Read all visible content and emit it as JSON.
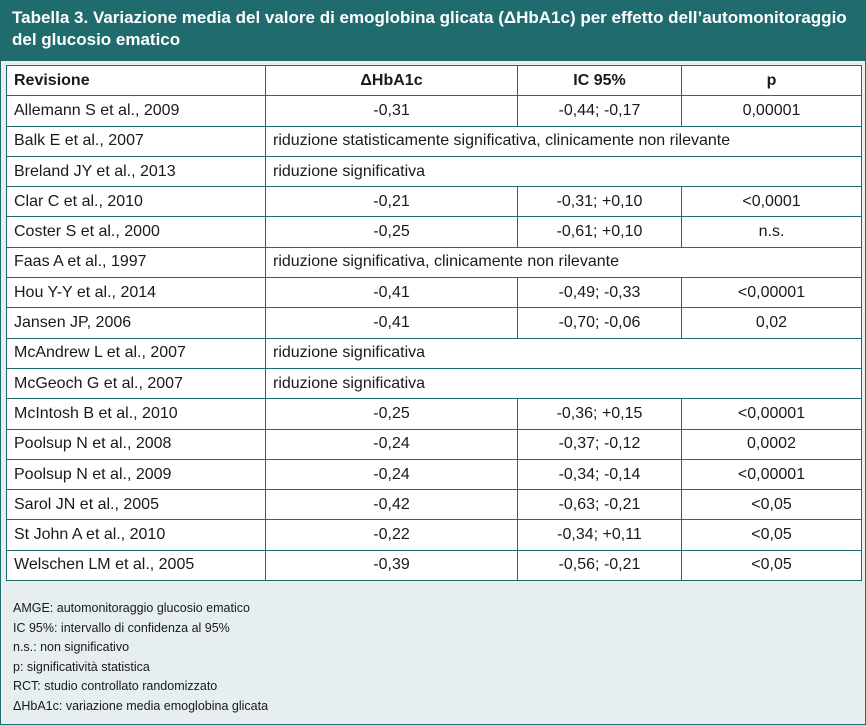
{
  "title": "Tabella 3. Variazione media del valore di emoglobina glicata (ΔHbA1c) per effetto dell’automonitoraggio del glucosio ematico",
  "columns": [
    "Revisione",
    "ΔHbA1c",
    "IC 95%",
    "p"
  ],
  "rows": [
    {
      "review": "Allemann S et al., 2009",
      "hba1c": "-0,31",
      "ic": "-0,44; -0,17",
      "p": "0,00001"
    },
    {
      "review": "Balk E et al., 2007",
      "note": "riduzione statisticamente significativa, clinicamente non rilevante"
    },
    {
      "review": "Breland JY et al., 2013",
      "note": "riduzione significativa"
    },
    {
      "review": "Clar C et al., 2010",
      "hba1c": "-0,21",
      "ic": "-0,31; +0,10",
      "p": "<0,0001"
    },
    {
      "review": "Coster S et al., 2000",
      "hba1c": "-0,25",
      "ic": "-0,61; +0,10",
      "p": "n.s."
    },
    {
      "review": "Faas A et al., 1997",
      "note": "riduzione significativa, clinicamente non rilevante"
    },
    {
      "review": "Hou Y-Y et al., 2014",
      "hba1c": "-0,41",
      "ic": "-0,49; -0,33",
      "p": "<0,00001"
    },
    {
      "review": "Jansen JP, 2006",
      "hba1c": "-0,41",
      "ic": "-0,70; -0,06",
      "p": "0,02"
    },
    {
      "review": "McAndrew L et al., 2007",
      "note": "riduzione significativa"
    },
    {
      "review": "McGeoch G et al., 2007",
      "note": "riduzione significativa"
    },
    {
      "review": "McIntosh B et al., 2010",
      "hba1c": "-0,25",
      "ic": "-0,36; +0,15",
      "p": "<0,00001"
    },
    {
      "review": "Poolsup N et al., 2008",
      "hba1c": "-0,24",
      "ic": "-0,37; -0,12",
      "p": "0,0002"
    },
    {
      "review": "Poolsup N et al., 2009",
      "hba1c": "-0,24",
      "ic": "-0,34; -0,14",
      "p": "<0,00001"
    },
    {
      "review": "Sarol JN et al., 2005",
      "hba1c": "-0,42",
      "ic": "-0,63; -0,21",
      "p": "<0,05"
    },
    {
      "review": "St John A et al., 2010",
      "hba1c": "-0,22",
      "ic": "-0,34; +0,11",
      "p": "<0,05"
    },
    {
      "review": "Welschen LM et al., 2005",
      "hba1c": "-0,39",
      "ic": "-0,56; -0,21",
      "p": "<0,05"
    }
  ],
  "notes": [
    "AMGE: automonitoraggio glucosio ematico",
    "IC 95%: intervallo di confidenza al 95%",
    "n.s.: non significativo",
    "p: significatività statistica",
    "RCT: studio controllato randomizzato",
    "ΔHbA1c: variazione media emoglobina glicata"
  ],
  "colors": {
    "header_bg": "#1f6b6e",
    "frame_bg": "#e6eef0",
    "border": "#1f6b6e"
  }
}
